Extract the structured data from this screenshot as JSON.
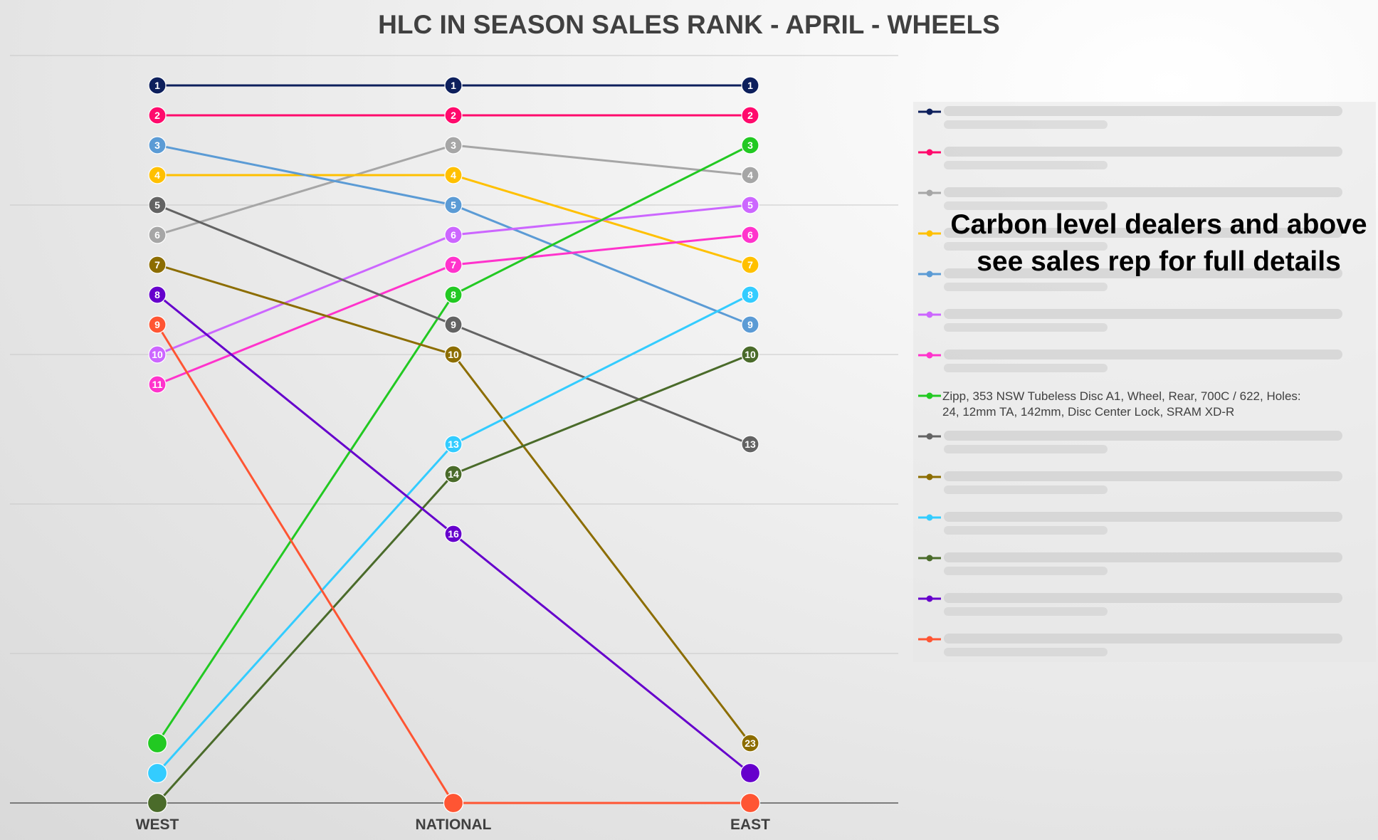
{
  "chart_data": {
    "type": "line",
    "title": "HLC IN SEASON SALES RANK - APRIL - WHEELS",
    "categories": [
      "WEST",
      "NATIONAL",
      "EAST"
    ],
    "ylim": [
      25,
      0
    ],
    "y_reversed": true,
    "gridlines": true,
    "legend_position": "right",
    "series": [
      {
        "color": "#0d1f5c",
        "values": [
          1,
          1,
          1
        ],
        "labels": [
          "1",
          "1",
          "1"
        ]
      },
      {
        "color": "#ff0a6c",
        "values": [
          2,
          2,
          2
        ],
        "labels": [
          "2",
          "2",
          "2"
        ]
      },
      {
        "color": "#a6a6a6",
        "values": [
          6,
          3,
          4
        ],
        "labels": [
          "6",
          "3",
          "4"
        ]
      },
      {
        "color": "#ffc000",
        "values": [
          4,
          4,
          7
        ],
        "labels": [
          "4",
          "4",
          "7"
        ]
      },
      {
        "color": "#5b9bd5",
        "values": [
          3,
          5,
          9
        ],
        "labels": [
          "3",
          "5",
          "9"
        ]
      },
      {
        "color": "#cc66ff",
        "values": [
          10,
          6,
          5
        ],
        "labels": [
          "10",
          "6",
          "5"
        ]
      },
      {
        "color": "#ff33cc",
        "values": [
          11,
          7,
          6
        ],
        "labels": [
          "11",
          "7",
          "6"
        ]
      },
      {
        "name": "Zipp, 353 NSW Tubeless Disc A1, Wheel, Rear, 700C / 622, Holes: 24, 12mm TA, 142mm, Disc Center Lock, SRAM XD-R",
        "color": "#22c922",
        "values": [
          23,
          8,
          3
        ],
        "labels": [
          "",
          "8",
          "3"
        ]
      },
      {
        "color": "#636363",
        "values": [
          5,
          9,
          13
        ],
        "labels": [
          "5",
          "9",
          "13"
        ]
      },
      {
        "color": "#8c6d00",
        "values": [
          7,
          10,
          23
        ],
        "labels": [
          "7",
          "10",
          "23"
        ]
      },
      {
        "color": "#33ccff",
        "values": [
          24,
          13,
          8
        ],
        "labels": [
          "",
          "13",
          "8"
        ]
      },
      {
        "color": "#4a6b2a",
        "values": [
          25,
          14,
          10
        ],
        "labels": [
          "",
          "14",
          "10"
        ]
      },
      {
        "color": "#6600cc",
        "values": [
          8,
          16,
          24
        ],
        "labels": [
          "8",
          "16",
          ""
        ]
      },
      {
        "color": "#ff5533",
        "values": [
          9,
          25,
          25
        ],
        "labels": [
          "9",
          "",
          ""
        ]
      }
    ]
  },
  "overlay": {
    "line1": "Carbon level dealers and above",
    "line2": "see sales rep for full details"
  }
}
